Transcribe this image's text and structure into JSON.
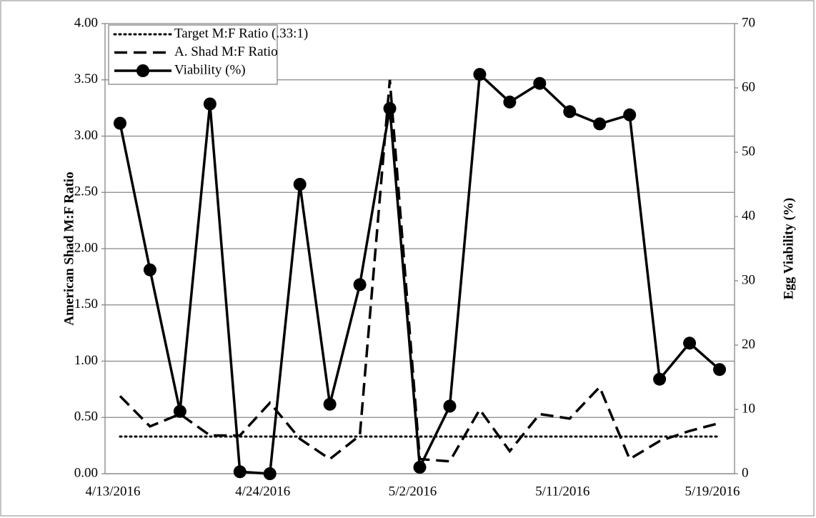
{
  "chart_data": {
    "type": "line",
    "y_label": "American Shad M:F Ratio",
    "y2_label": "Egg Viability (%)",
    "categories": [
      "4/13/2016",
      null,
      null,
      null,
      null,
      "4/24/2016",
      null,
      null,
      null,
      null,
      "5/2/2016",
      null,
      null,
      null,
      null,
      "5/11/2016",
      null,
      null,
      null,
      null,
      "5/19/2016"
    ],
    "ylim": [
      0,
      4
    ],
    "yticks": [
      {
        "value": 0,
        "label": "0.00"
      },
      {
        "value": 0.5,
        "label": "0.50"
      },
      {
        "value": 1,
        "label": "1.00"
      },
      {
        "value": 1.5,
        "label": "1.50"
      },
      {
        "value": 2,
        "label": "2.00"
      },
      {
        "value": 2.5,
        "label": "2.50"
      },
      {
        "value": 3,
        "label": "3.00"
      },
      {
        "value": 3.5,
        "label": "3.50"
      },
      {
        "value": 4,
        "label": "4.00"
      }
    ],
    "y2lim": [
      0,
      70
    ],
    "y2ticks": [
      0,
      10,
      20,
      30,
      40,
      50,
      60,
      70
    ],
    "grid": true,
    "legend": "upper left",
    "series": [
      {
        "name": "Target M:F Ratio (.33:1)",
        "color": "#000000",
        "style": "dotted",
        "values": [
          0.33,
          0.33,
          0.33,
          0.33,
          0.33,
          0.33,
          0.33,
          0.33,
          0.33,
          0.33,
          0.33,
          0.33,
          0.33,
          0.33,
          0.33,
          0.33,
          0.33,
          0.33,
          0.33,
          0.33,
          0.33
        ]
      },
      {
        "name": "A. Shad M:F Ratio",
        "color": "#000000",
        "style": "dashed",
        "values": [
          0.69,
          0.42,
          0.53,
          0.34,
          0.34,
          0.63,
          0.31,
          0.13,
          0.34,
          3.5,
          0.13,
          0.11,
          0.57,
          0.2,
          0.53,
          0.49,
          0.77,
          0.13,
          0.29,
          0.38,
          0.45
        ]
      },
      {
        "name": "Viability (%)",
        "color": "#000000",
        "style": "solid",
        "marker": true,
        "axis": "y2",
        "values": [
          54.5,
          31.7,
          9.7,
          57.5,
          0.3,
          0,
          45,
          10.8,
          29.4,
          56.8,
          1,
          10.5,
          62.1,
          57.8,
          60.7,
          56.3,
          54.4,
          55.8,
          14.7,
          20.3,
          16.2
        ]
      }
    ]
  }
}
